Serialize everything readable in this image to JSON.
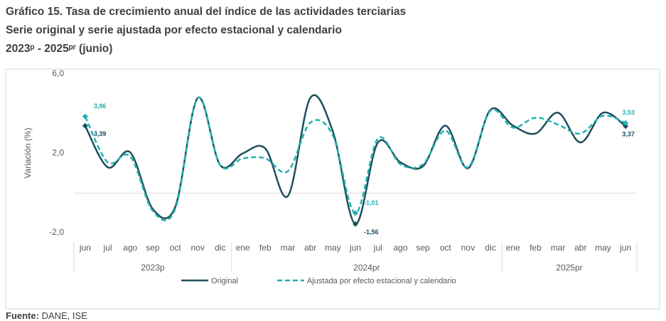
{
  "chart_data": {
    "type": "line",
    "title": "Gráfico 15. Tasa de crecimiento anual del índice de las actividades terciarias",
    "subtitle": "Serie original y serie ajustada por efecto estacional y calendario",
    "period": "2023ᵖ - 2025ᵖʳ (junio)",
    "y_label": "Variación  (%)",
    "groups": [
      {
        "name": "2023p",
        "categories": [
          "jun",
          "jul",
          "ago",
          "sep",
          "oct",
          "nov",
          "dic"
        ]
      },
      {
        "name": "2024pr",
        "categories": [
          "ene",
          "feb",
          "mar",
          "abr",
          "may",
          "jun",
          "jul",
          "ago",
          "sep",
          "oct",
          "nov",
          "dic"
        ]
      },
      {
        "name": "2025pr",
        "categories": [
          "ene",
          "feb",
          "mar",
          "abr",
          "may",
          "jun"
        ]
      }
    ],
    "ylim": [
      -2.0,
      6.0
    ],
    "yticks": [
      {
        "value": -2.0,
        "label": "-2,0"
      },
      {
        "value": 2.0,
        "label": "2,0"
      },
      {
        "value": 6.0,
        "label": "6,0"
      }
    ],
    "series": [
      {
        "name": "Original",
        "color": "#1d4f5c",
        "dash": false,
        "values": [
          3.39,
          1.3,
          2.05,
          -0.8,
          -0.7,
          4.8,
          1.4,
          2.0,
          2.25,
          -0.15,
          4.8,
          3.1,
          -1.56,
          2.55,
          1.55,
          1.35,
          3.4,
          1.25,
          4.2,
          3.4,
          3.0,
          4.05,
          2.55,
          4.05,
          3.37
        ],
        "value_labels": [
          "3,39",
          null,
          null,
          null,
          null,
          null,
          null,
          null,
          null,
          null,
          null,
          null,
          "-1,56",
          null,
          null,
          null,
          null,
          null,
          null,
          null,
          null,
          null,
          null,
          null,
          "3,37"
        ]
      },
      {
        "name": "Ajustada por efecto estacional y calendario",
        "color": "#20b2b0",
        "dash": true,
        "values": [
          3.86,
          1.55,
          1.85,
          -0.9,
          -0.8,
          4.8,
          1.4,
          1.75,
          1.75,
          1.1,
          3.55,
          2.9,
          -1.01,
          2.75,
          1.45,
          1.45,
          3.15,
          1.3,
          4.15,
          3.3,
          3.8,
          3.45,
          3.0,
          3.9,
          3.53
        ],
        "value_labels": [
          "3,86",
          null,
          null,
          null,
          null,
          null,
          null,
          null,
          null,
          null,
          null,
          null,
          "-1,01",
          null,
          null,
          null,
          null,
          null,
          null,
          null,
          null,
          null,
          null,
          null,
          "3,53"
        ]
      }
    ],
    "source_label": "Fuente:",
    "source": "DANE, ISE"
  }
}
